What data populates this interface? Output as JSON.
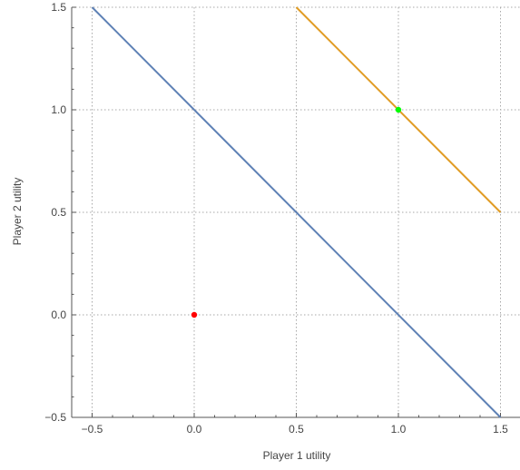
{
  "chart_data": {
    "type": "line",
    "xlabel": "Player 1 utility",
    "ylabel": "Player 2 utility",
    "xlim": [
      -0.6,
      1.6
    ],
    "ylim": [
      -0.5,
      1.5
    ],
    "xticks": [
      -0.5,
      0.0,
      0.5,
      1.0,
      1.5
    ],
    "xtick_labels": [
      "−0.5",
      "0.0",
      "0.5",
      "1.0",
      "1.5"
    ],
    "yticks": [
      -0.5,
      0.0,
      0.5,
      1.0,
      1.5
    ],
    "ytick_labels": [
      "−0.5",
      "0.0",
      "0.5",
      "1.0",
      "1.5"
    ],
    "grid": true,
    "series": [
      {
        "points": [
          [
            -0.5,
            1.5
          ],
          [
            1.5,
            -0.5
          ]
        ],
        "color": "#5e81b5"
      },
      {
        "points": [
          [
            0.5,
            1.5
          ],
          [
            1.5,
            0.5
          ]
        ],
        "color": "#e19c24"
      }
    ],
    "markers": [
      {
        "x": 0.0,
        "y": 0.0,
        "color": "#ff0000"
      },
      {
        "x": 1.0,
        "y": 1.0,
        "color": "#00ff00"
      }
    ]
  }
}
